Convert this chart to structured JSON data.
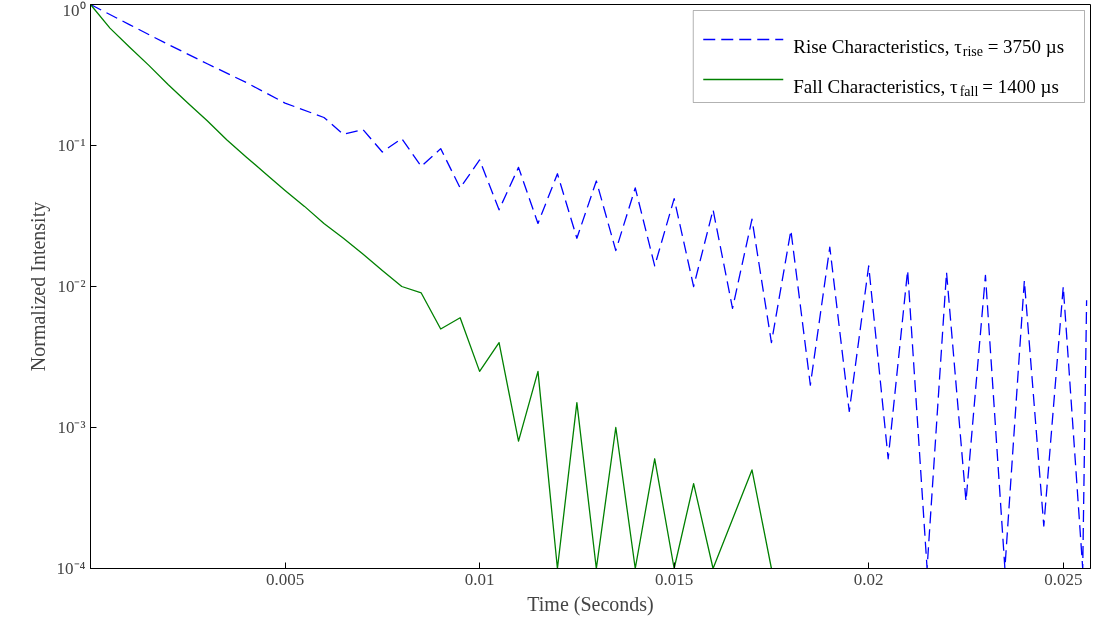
{
  "chart_data": {
    "type": "line",
    "xlabel": "Time (Seconds)",
    "ylabel": "Normalized Intensity",
    "log": "y",
    "xlim": [
      0,
      0.0257
    ],
    "xticks": [
      0.005,
      0.01,
      0.015,
      0.02,
      0.025
    ],
    "ylim": [
      0.0001,
      1
    ],
    "yticks": [
      {
        "value": 1,
        "label": "10⁰"
      },
      {
        "value": 0.1,
        "label": "10⁻¹"
      },
      {
        "value": 0.01,
        "label": "10⁻²"
      },
      {
        "value": 0.001,
        "label": "10⁻³"
      },
      {
        "value": 0.0001,
        "label": "10⁻⁴"
      }
    ],
    "grid": false,
    "legend": "top right",
    "series": [
      {
        "name": "Rise Characteristics, τ$_{rise}$ = 3750 µs",
        "color": "#0000ff",
        "line_style": "dashed",
        "x": [
          0,
          0.001,
          0.002,
          0.003,
          0.004,
          0.005,
          0.006,
          0.0065,
          0.007,
          0.0075,
          0.008,
          0.0085,
          0.009,
          0.0095,
          0.01,
          0.0105,
          0.011,
          0.0115,
          0.012,
          0.0125,
          0.013,
          0.0135,
          0.014,
          0.0145,
          0.015,
          0.0155,
          0.016,
          0.0165,
          0.017,
          0.0175,
          0.018,
          0.0185,
          0.019,
          0.0195,
          0.02,
          0.0205,
          0.021,
          0.0215,
          0.022,
          0.0225,
          0.023,
          0.0235,
          0.024,
          0.0245,
          0.025,
          0.0255,
          0.0256
        ],
        "values": [
          1,
          0.72,
          0.52,
          0.38,
          0.28,
          0.2,
          0.158,
          0.12,
          0.13,
          0.09,
          0.112,
          0.071,
          0.095,
          0.05,
          0.079,
          0.035,
          0.07,
          0.028,
          0.063,
          0.022,
          0.056,
          0.018,
          0.05,
          0.014,
          0.042,
          0.01,
          0.035,
          0.007,
          0.03,
          0.004,
          0.025,
          0.002,
          0.019,
          0.0013,
          0.014,
          0.0006,
          0.013,
          0.0001,
          0.0126,
          0.0003,
          0.012,
          0.0001,
          0.011,
          0.0002,
          0.01,
          0.0001,
          0.008
        ]
      },
      {
        "name": "Fall Characteristics, τ$_{fall}$ = 1400 µs",
        "color": "#008000",
        "line_style": "solid",
        "x": [
          0,
          0.0005,
          0.001,
          0.0015,
          0.002,
          0.0025,
          0.003,
          0.0035,
          0.004,
          0.0045,
          0.005,
          0.0055,
          0.006,
          0.0065,
          0.007,
          0.0075,
          0.008,
          0.0085,
          0.009,
          0.0095,
          0.01,
          0.0105,
          0.011,
          0.0115,
          0.012,
          0.0125,
          0.013,
          0.0135,
          0.014,
          0.0145,
          0.015,
          0.0155,
          0.016,
          0.017,
          0.0175
        ],
        "values": [
          1,
          0.68,
          0.5,
          0.37,
          0.27,
          0.2,
          0.15,
          0.11,
          0.083,
          0.063,
          0.048,
          0.037,
          0.028,
          0.022,
          0.017,
          0.013,
          0.01,
          0.009,
          0.005,
          0.006,
          0.0025,
          0.004,
          0.0008,
          0.0025,
          0.0001,
          0.0015,
          0.0001,
          0.001,
          0.0001,
          0.0006,
          0.0001,
          0.0004,
          0.0001,
          0.0005,
          0.0001
        ]
      }
    ]
  }
}
